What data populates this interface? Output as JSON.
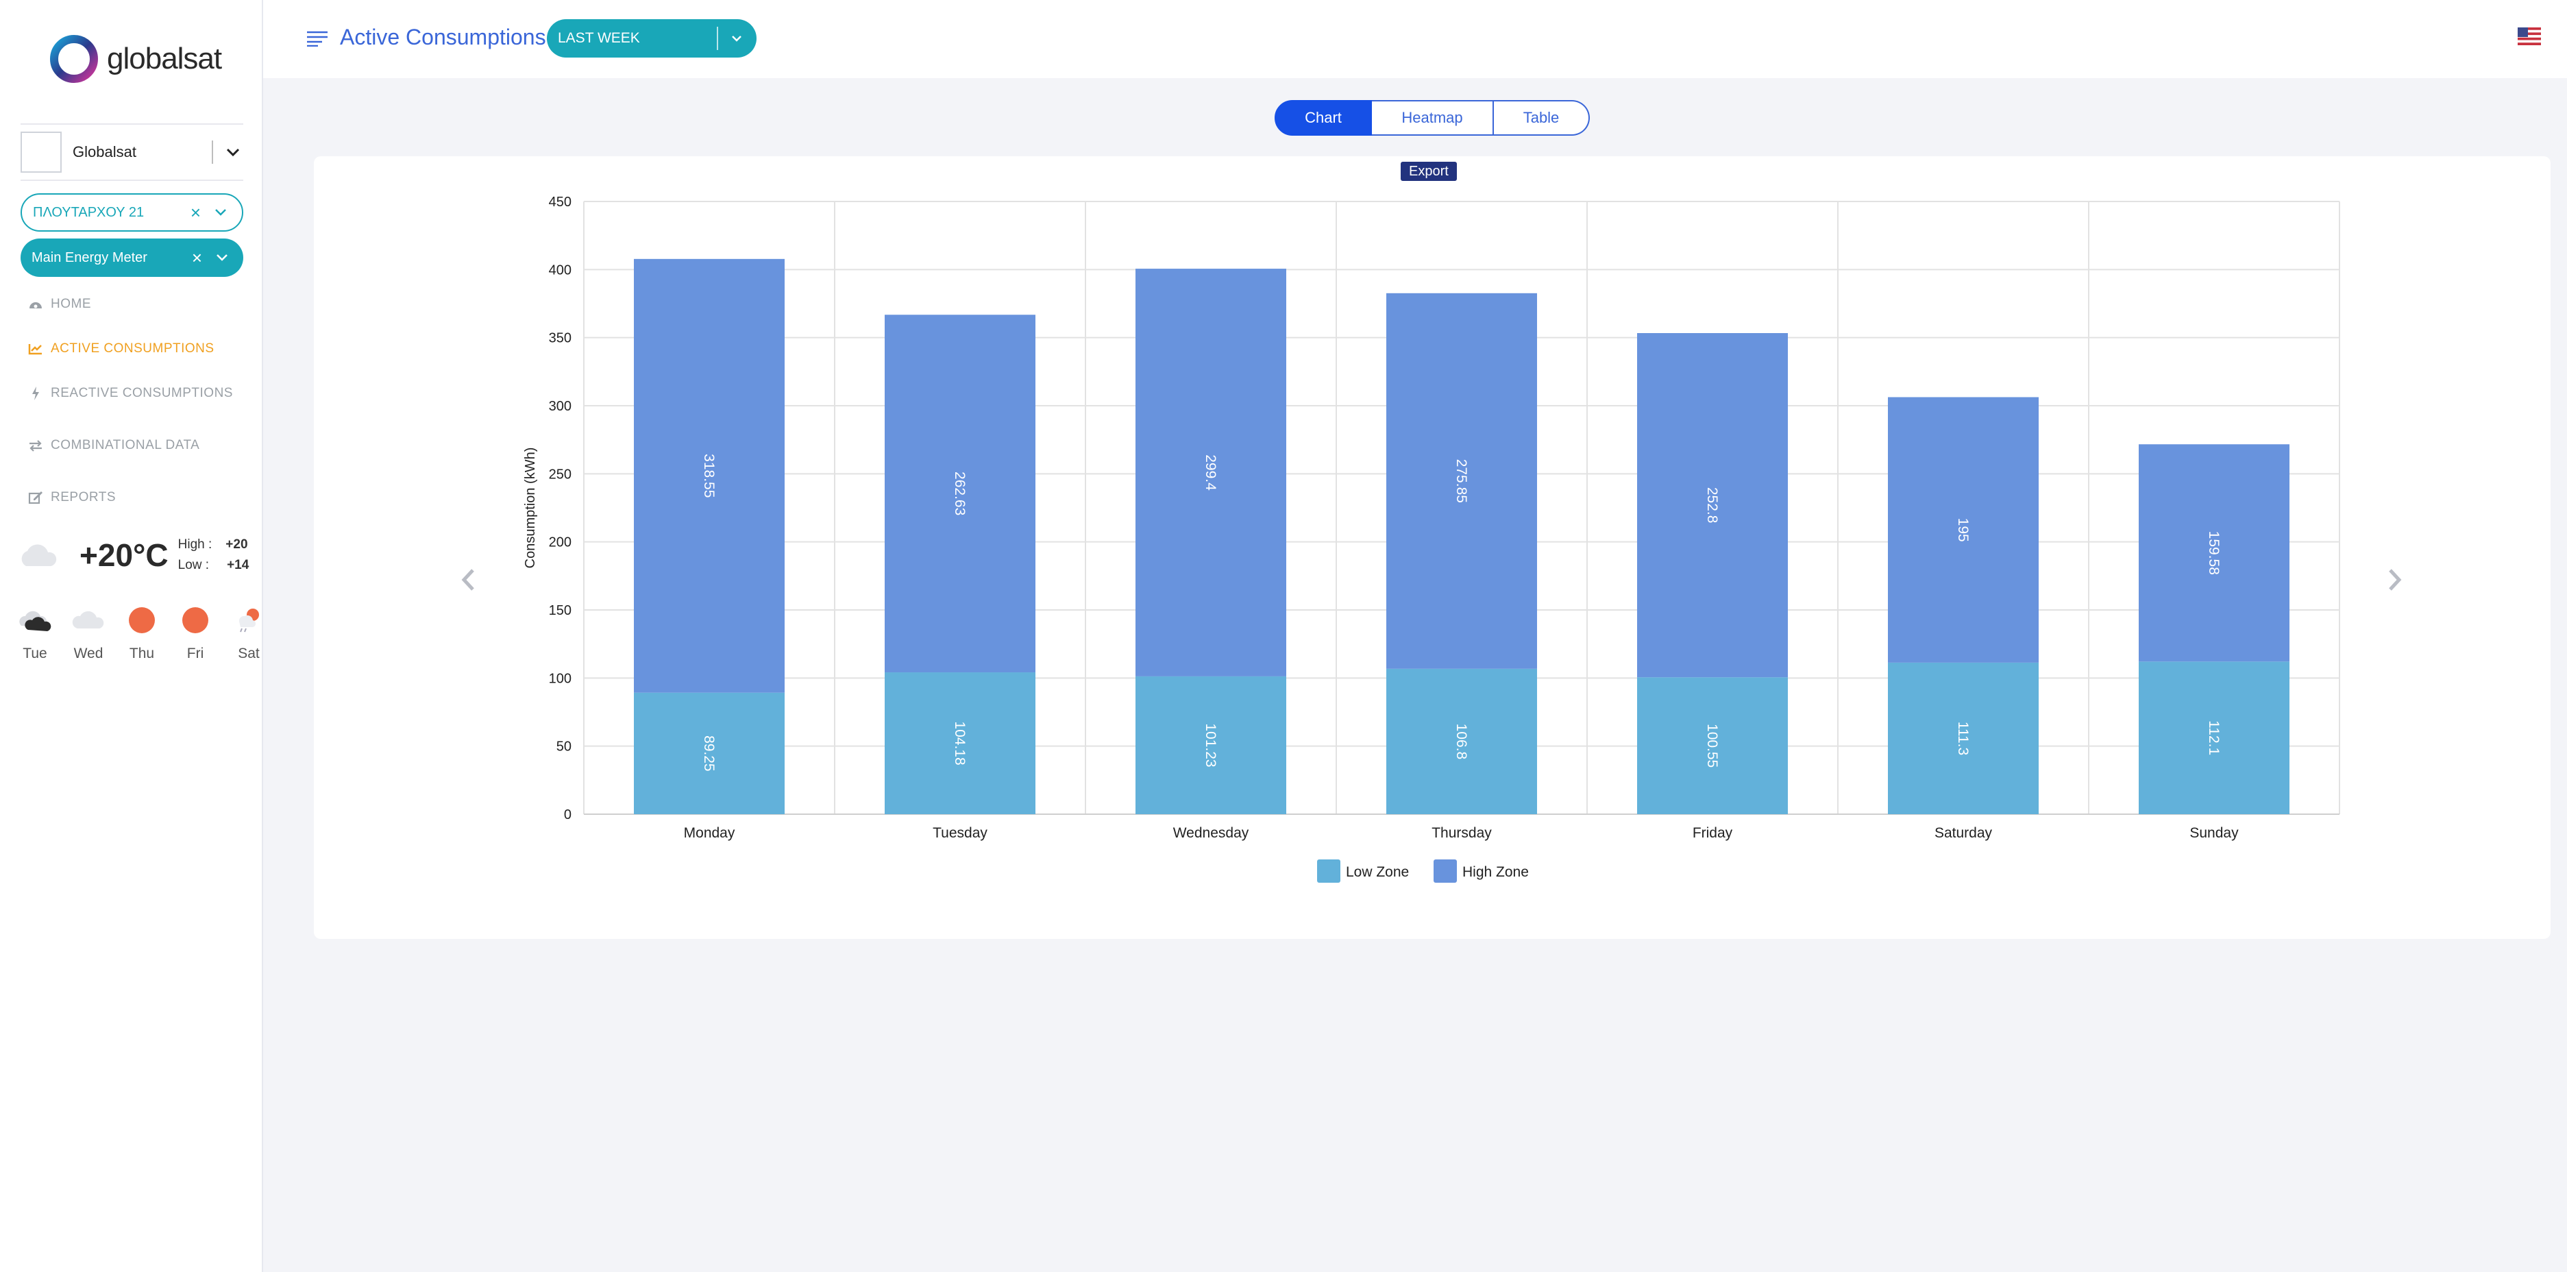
{
  "brand": {
    "name": "globalsat"
  },
  "sidebar": {
    "company": "Globalsat",
    "location": "ΠΛΟΥΤΑΡΧΟΥ 21",
    "meter": "Main Energy Meter",
    "nav": [
      {
        "label": "HOME",
        "icon": "dashboard-icon"
      },
      {
        "label": "ACTIVE CONSUMPTIONS",
        "icon": "line-chart-icon"
      },
      {
        "label": "REACTIVE CONSUMPTIONS",
        "icon": "bolt-icon"
      },
      {
        "label": "COMBINATIONAL DATA",
        "icon": "exchange-icon"
      },
      {
        "label": "REPORTS",
        "icon": "edit-icon"
      }
    ]
  },
  "weather": {
    "temp": "+20°C",
    "high_label": "High :",
    "high": "+20",
    "low_label": "Low :",
    "low": "+14",
    "forecast": [
      {
        "day": "Tue",
        "icon": "cloud-dark-icon"
      },
      {
        "day": "Wed",
        "icon": "cloud-icon"
      },
      {
        "day": "Thu",
        "icon": "sun-icon"
      },
      {
        "day": "Fri",
        "icon": "sun-icon"
      },
      {
        "day": "Sat",
        "icon": "sun-rain-icon"
      }
    ]
  },
  "header": {
    "title": "Active Consumptions",
    "period": "LAST WEEK"
  },
  "tabs": [
    "Chart",
    "Heatmap",
    "Table"
  ],
  "export_label": "Export",
  "colors": {
    "accent": "#19a7b8",
    "primary": "#1650e6",
    "low_zone": "#62b1da",
    "high_zone": "#6893dd",
    "active_nav": "#f0a020"
  },
  "chart_data": {
    "type": "bar",
    "stacked": true,
    "categories": [
      "Monday",
      "Tuesday",
      "Wednesday",
      "Thursday",
      "Friday",
      "Saturday",
      "Sunday"
    ],
    "series": [
      {
        "name": "Low Zone",
        "color": "#62b1da",
        "values": [
          89.25,
          104.18,
          101.23,
          106.8,
          100.55,
          111.3,
          112.1
        ]
      },
      {
        "name": "High Zone",
        "color": "#6893dd",
        "values": [
          318.55,
          262.63,
          299.4,
          275.85,
          252.8,
          195,
          159.58
        ]
      }
    ],
    "ylabel": "Consumption (kWh)",
    "ylim": [
      0,
      450
    ],
    "yticks": [
      0,
      50,
      100,
      150,
      200,
      250,
      300,
      350,
      400,
      450
    ],
    "grid": true,
    "legend": "bottom"
  }
}
